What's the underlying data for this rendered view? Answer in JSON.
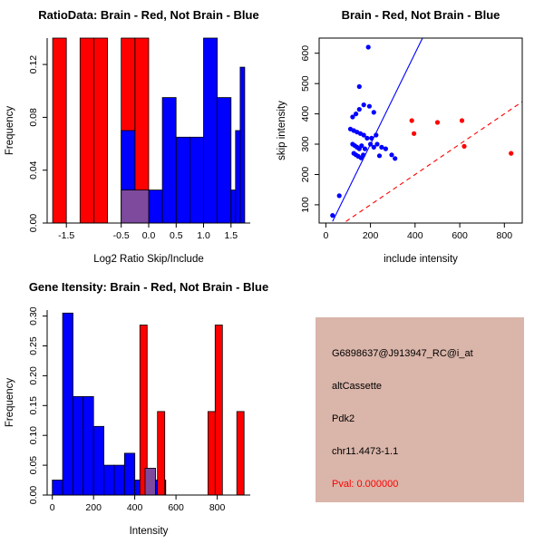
{
  "chart_data": [
    {
      "id": "ratio_hist",
      "type": "bar",
      "title": "RatioData: Brain - Red, Not Brain - Blue",
      "xlabel": "Log2 Ratio Skip/Include",
      "ylabel": "Frequency",
      "xlim": [
        -1.85,
        1.85
      ],
      "ylim": [
        0,
        0.14
      ],
      "xticks": [
        -1.5,
        -0.5,
        0,
        0.5,
        1,
        1.5
      ],
      "xtick_labels": [
        "-1.5",
        "-0.5",
        "0.0",
        "0.5",
        "1.0",
        "1.5"
      ],
      "yticks": [
        0,
        0.04,
        0.08,
        0.12
      ],
      "ytick_labels": [
        "0.00",
        "0.04",
        "0.08",
        "0.12"
      ],
      "legend_note": "overlaid histograms: red = Brain, blue = Not Brain, purple = overlap",
      "bars": [
        {
          "x0": -1.75,
          "x1": -1.5,
          "h": 0.14,
          "color": "red"
        },
        {
          "x0": -1.25,
          "x1": -1.0,
          "h": 0.14,
          "color": "red"
        },
        {
          "x0": -1.0,
          "x1": -0.75,
          "h": 0.14,
          "color": "red"
        },
        {
          "x0": -0.5,
          "x1": -0.25,
          "h": 0.14,
          "color": "red"
        },
        {
          "x0": -0.25,
          "x1": 0.0,
          "h": 0.14,
          "color": "red"
        },
        {
          "x0": -0.5,
          "x1": -0.25,
          "h": 0.07,
          "color": "blue"
        },
        {
          "x0": 0.0,
          "x1": 0.25,
          "h": 0.025,
          "color": "blue"
        },
        {
          "x0": 0.25,
          "x1": 0.5,
          "h": 0.095,
          "color": "blue"
        },
        {
          "x0": 0.5,
          "x1": 0.75,
          "h": 0.065,
          "color": "blue"
        },
        {
          "x0": 0.75,
          "x1": 1.0,
          "h": 0.065,
          "color": "blue"
        },
        {
          "x0": 1.0,
          "x1": 1.25,
          "h": 0.14,
          "color": "blue"
        },
        {
          "x0": 1.25,
          "x1": 1.5,
          "h": 0.095,
          "color": "blue"
        },
        {
          "x0": 1.5,
          "x1": 1.583,
          "h": 0.025,
          "color": "blue"
        },
        {
          "x0": 1.583,
          "x1": 1.667,
          "h": 0.07,
          "color": "blue"
        },
        {
          "x0": 1.667,
          "x1": 1.75,
          "h": 0.118,
          "color": "blue"
        }
      ],
      "overlaps": [
        {
          "x0": -0.5,
          "x1": 0.0,
          "h": 0.025
        }
      ]
    },
    {
      "id": "scatter",
      "type": "scatter",
      "title": "Brain - Red, Not Brain - Blue",
      "xlabel": "include intensity",
      "ylabel": "skip intensity",
      "xlim": [
        -30,
        880
      ],
      "ylim": [
        40,
        650
      ],
      "xticks": [
        0,
        200,
        400,
        600,
        800
      ],
      "xtick_labels": [
        "0",
        "200",
        "400",
        "600",
        "800"
      ],
      "yticks": [
        100,
        200,
        300,
        400,
        500,
        600
      ],
      "ytick_labels": [
        "100",
        "200",
        "300",
        "400",
        "500",
        "600"
      ],
      "blue_points": [
        [
          30,
          65
        ],
        [
          60,
          130
        ],
        [
          150,
          490
        ],
        [
          190,
          620
        ],
        [
          120,
          390
        ],
        [
          135,
          400
        ],
        [
          150,
          415
        ],
        [
          170,
          430
        ],
        [
          195,
          425
        ],
        [
          215,
          405
        ],
        [
          110,
          350
        ],
        [
          125,
          345
        ],
        [
          140,
          340
        ],
        [
          155,
          335
        ],
        [
          170,
          330
        ],
        [
          185,
          320
        ],
        [
          120,
          300
        ],
        [
          130,
          295
        ],
        [
          140,
          290
        ],
        [
          150,
          285
        ],
        [
          160,
          295
        ],
        [
          175,
          285
        ],
        [
          125,
          270
        ],
        [
          135,
          265
        ],
        [
          145,
          260
        ],
        [
          158,
          255
        ],
        [
          168,
          265
        ],
        [
          200,
          300
        ],
        [
          215,
          290
        ],
        [
          230,
          300
        ],
        [
          250,
          290
        ],
        [
          268,
          285
        ],
        [
          295,
          265
        ],
        [
          310,
          253
        ],
        [
          240,
          262
        ],
        [
          205,
          320
        ],
        [
          225,
          330
        ]
      ],
      "red_points": [
        [
          385,
          378
        ],
        [
          395,
          335
        ],
        [
          500,
          372
        ],
        [
          610,
          378
        ],
        [
          620,
          293
        ],
        [
          830,
          270
        ]
      ],
      "lines": [
        {
          "x1": 30,
          "y1": 45,
          "x2": 433,
          "y2": 650,
          "color": "blue",
          "dash": false
        },
        {
          "x1": 90,
          "y1": 45,
          "x2": 880,
          "y2": 440,
          "color": "red",
          "dash": true
        }
      ]
    },
    {
      "id": "gene_hist",
      "type": "bar",
      "title": "Gene Itensity: Brain - Red, Not Brain - Blue",
      "xlabel": "Intensity",
      "ylabel": "Frequency",
      "xlim": [
        -25,
        960
      ],
      "ylim": [
        0,
        0.31
      ],
      "xticks": [
        0,
        200,
        400,
        600,
        800
      ],
      "xtick_labels": [
        "0",
        "200",
        "400",
        "600",
        "800"
      ],
      "yticks": [
        0,
        0.05,
        0.1,
        0.15,
        0.2,
        0.25,
        0.3
      ],
      "ytick_labels": [
        "0.00",
        "0.05",
        "0.10",
        "0.15",
        "0.20",
        "0.25",
        "0.30"
      ],
      "legend_note": "overlaid histograms: red = Brain, blue = Not Brain, purple = overlap",
      "bars": [
        {
          "x0": 0,
          "x1": 50,
          "h": 0.025,
          "color": "blue"
        },
        {
          "x0": 50,
          "x1": 100,
          "h": 0.305,
          "color": "blue"
        },
        {
          "x0": 100,
          "x1": 150,
          "h": 0.165,
          "color": "blue"
        },
        {
          "x0": 150,
          "x1": 200,
          "h": 0.165,
          "color": "blue"
        },
        {
          "x0": 200,
          "x1": 250,
          "h": 0.115,
          "color": "blue"
        },
        {
          "x0": 250,
          "x1": 300,
          "h": 0.05,
          "color": "blue"
        },
        {
          "x0": 300,
          "x1": 350,
          "h": 0.05,
          "color": "blue"
        },
        {
          "x0": 350,
          "x1": 400,
          "h": 0.07,
          "color": "blue"
        },
        {
          "x0": 400,
          "x1": 450,
          "h": 0.025,
          "color": "blue"
        },
        {
          "x0": 450,
          "x1": 500,
          "h": 0.045,
          "color": "blue"
        },
        {
          "x0": 500,
          "x1": 550,
          "h": 0.025,
          "color": "blue"
        },
        {
          "x0": 425,
          "x1": 460,
          "h": 0.285,
          "color": "red"
        },
        {
          "x0": 510,
          "x1": 545,
          "h": 0.14,
          "color": "red"
        },
        {
          "x0": 755,
          "x1": 790,
          "h": 0.14,
          "color": "red"
        },
        {
          "x0": 790,
          "x1": 825,
          "h": 0.285,
          "color": "red"
        },
        {
          "x0": 895,
          "x1": 930,
          "h": 0.14,
          "color": "red"
        }
      ],
      "overlaps": [
        {
          "x0": 450,
          "x1": 500,
          "h": 0.045
        }
      ]
    }
  ],
  "colors": {
    "red": "#ff0000",
    "blue": "#0000ff",
    "purple": "#7d4a9e",
    "axis": "#000000",
    "background": "#ffffff"
  },
  "info_panel": {
    "bg_color": "#dab5a9",
    "lines": [
      {
        "text": "G6898637@J913947_RC@i_at",
        "color": "#000000"
      },
      {
        "text": "altCassette",
        "color": "#000000"
      },
      {
        "text": "Pdk2",
        "color": "#000000"
      },
      {
        "text": "chr11.4473-1.1",
        "color": "#000000"
      },
      {
        "text": "Pval: 0.000000",
        "color": "#ff0000"
      }
    ]
  }
}
